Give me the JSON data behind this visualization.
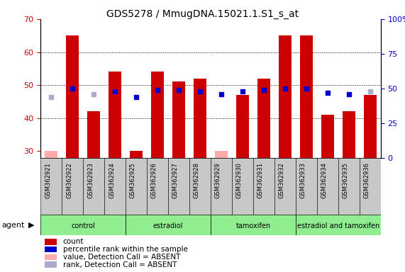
{
  "title": "GDS5278 / MmugDNA.15021.1.S1_s_at",
  "samples": [
    "GSM362921",
    "GSM362922",
    "GSM362923",
    "GSM362924",
    "GSM362925",
    "GSM362926",
    "GSM362927",
    "GSM362928",
    "GSM362929",
    "GSM362930",
    "GSM362931",
    "GSM362932",
    "GSM362933",
    "GSM362934",
    "GSM362935",
    "GSM362936"
  ],
  "group_configs": [
    {
      "label": "control",
      "start": 0,
      "end": 4
    },
    {
      "label": "estradiol",
      "start": 4,
      "end": 8
    },
    {
      "label": "tamoxifen",
      "start": 8,
      "end": 12
    },
    {
      "label": "estradiol and tamoxifen",
      "start": 12,
      "end": 16
    }
  ],
  "count_values": [
    30,
    65,
    42,
    54,
    30,
    54,
    51,
    52,
    30,
    47,
    52,
    65,
    65,
    41,
    42,
    47
  ],
  "count_absent": [
    true,
    false,
    false,
    false,
    false,
    false,
    false,
    false,
    true,
    false,
    false,
    false,
    false,
    false,
    false,
    false
  ],
  "rank_values": [
    44,
    50,
    46,
    48,
    44,
    49,
    49,
    48,
    46,
    48,
    49,
    50,
    50,
    47,
    46,
    48
  ],
  "rank_absent": [
    true,
    false,
    true,
    false,
    false,
    false,
    false,
    false,
    false,
    false,
    false,
    false,
    false,
    false,
    false,
    true
  ],
  "ylim_left": [
    28,
    70
  ],
  "ylim_right": [
    0,
    100
  ],
  "yticks_left": [
    30,
    40,
    50,
    60,
    70
  ],
  "yticks_right": [
    0,
    25,
    50,
    75,
    100
  ],
  "ytick_right_labels": [
    "0",
    "25",
    "50",
    "75",
    "100%"
  ],
  "ylabel_left_color": "#cc0000",
  "ylabel_right_color": "#0000cc",
  "count_color_present": "#cc0000",
  "count_color_absent": "#ffaaaa",
  "rank_color_present": "#0000cc",
  "rank_color_absent": "#aaaacc",
  "group_color": "#90ee90",
  "sample_bg_color": "#c8c8c8",
  "legend_items": [
    {
      "label": "count",
      "color": "#cc0000"
    },
    {
      "label": "percentile rank within the sample",
      "color": "#0000cc"
    },
    {
      "label": "value, Detection Call = ABSENT",
      "color": "#ffaaaa"
    },
    {
      "label": "rank, Detection Call = ABSENT",
      "color": "#aaaacc"
    }
  ]
}
